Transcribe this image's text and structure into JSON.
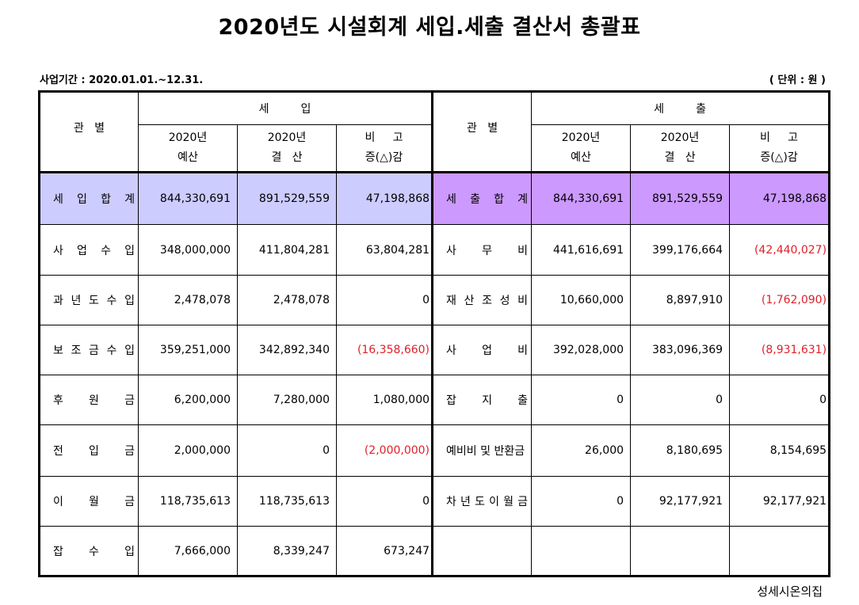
{
  "title": "2020년도 시설회계 세입.세출 결산서 총괄표",
  "period": "사업기간 : 2020.01.01.~12.31.",
  "unit": "( 단위 : 원 )",
  "headers": {
    "category": "관   별",
    "revenue": "세         입",
    "expense": "세         출",
    "budget_year": "2020년",
    "budget": "예산",
    "settle_year": "2020년",
    "settle": "결   산",
    "note": "비     고",
    "diff": "증(△)감"
  },
  "revenue_rows": [
    {
      "label": "세입합계",
      "budget": "844,330,691",
      "settle": "891,529,559",
      "diff": "47,198,868"
    },
    {
      "label": "사업수입",
      "budget": "348,000,000",
      "settle": "411,804,281",
      "diff": "63,804,281"
    },
    {
      "label": "과년도수입",
      "budget": "2,478,078",
      "settle": "2,478,078",
      "diff": "0"
    },
    {
      "label": "보조금수입",
      "budget": "359,251,000",
      "settle": "342,892,340",
      "diff": "(16,358,660)"
    },
    {
      "label": "후원금",
      "budget": "6,200,000",
      "settle": "7,280,000",
      "diff": "1,080,000"
    },
    {
      "label": "전입금",
      "budget": "2,000,000",
      "settle": "0",
      "diff": "(2,000,000)"
    },
    {
      "label": "이월금",
      "budget": "118,735,613",
      "settle": "118,735,613",
      "diff": "0"
    },
    {
      "label": "잡수입",
      "budget": "7,666,000",
      "settle": "8,339,247",
      "diff": "673,247"
    }
  ],
  "expense_rows": [
    {
      "label": "세출합계",
      "budget": "844,330,691",
      "settle": "891,529,559",
      "diff": "47,198,868"
    },
    {
      "label": "사무비",
      "budget": "441,616,691",
      "settle": "399,176,664",
      "diff": "(42,440,027)"
    },
    {
      "label": "재산조성비",
      "budget": "10,660,000",
      "settle": "8,897,910",
      "diff": "(1,762,090)"
    },
    {
      "label": "사업비",
      "budget": "392,028,000",
      "settle": "383,096,369",
      "diff": "(8,931,631)"
    },
    {
      "label": "잡지출",
      "budget": "0",
      "settle": "0",
      "diff": "0"
    },
    {
      "label": "예비비 및 반환금",
      "budget": "26,000",
      "settle": "8,180,695",
      "diff": "8,154,695"
    },
    {
      "label": "차년도이월금",
      "budget": "0",
      "settle": "92,177,921",
      "diff": "92,177,921"
    },
    {
      "label": "",
      "budget": "",
      "settle": "",
      "diff": ""
    }
  ],
  "footer": "성세시온의집",
  "colors": {
    "total_revenue_bg": "#ccccff",
    "total_expense_bg": "#cc99ff",
    "negative": "#e0202a"
  }
}
